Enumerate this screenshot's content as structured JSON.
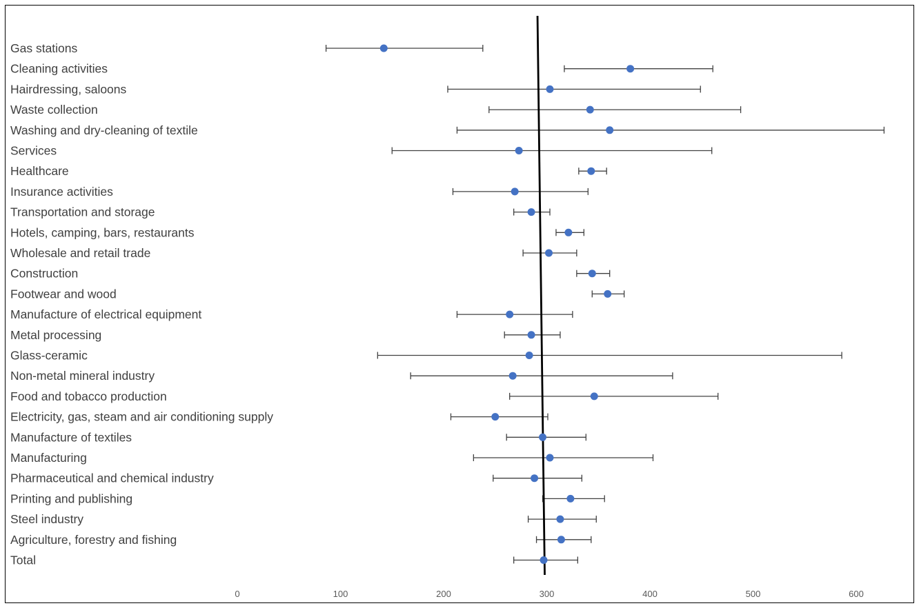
{
  "chart_data": {
    "type": "scatter",
    "title": "",
    "xlabel": "",
    "ylabel": "",
    "xlim": [
      0,
      600
    ],
    "x_ticks": [
      0,
      100,
      200,
      300,
      400,
      500,
      600
    ],
    "grid": false,
    "legend": "none",
    "marker_color": "#4472C4",
    "errorbar_color": "#404040",
    "reference_line": {
      "x_top": 291,
      "x_bottom": 298,
      "color": "#000000"
    },
    "categories": [
      "Gas stations",
      "Cleaning activities",
      "Hairdressing, saloons",
      "Waste collection",
      "Washing and dry-cleaning of textile",
      "Services",
      "Healthcare",
      "Insurance activities",
      "Transportation and storage",
      "Hotels, camping, bars, restaurants",
      "Wholesale and retail trade",
      "Construction",
      "Footwear and wood",
      "Manufacture of electrical equipment",
      "Metal processing",
      "Glass-ceramic",
      "Non-metal mineral industry",
      "Food and tobacco production",
      "Electricity, gas, steam and air conditioning supply",
      "Manufacture of textiles",
      "Manufacturing",
      "Pharmaceutical and chemical industry",
      "Printing and publishing",
      "Steel industry",
      "Agriculture, forestry and fishing",
      "Total"
    ],
    "values": [
      142,
      381,
      303,
      342,
      361,
      273,
      343,
      269,
      285,
      321,
      302,
      344,
      359,
      264,
      285,
      283,
      267,
      346,
      250,
      296,
      303,
      288,
      323,
      313,
      314,
      297
    ],
    "lower": [
      86,
      317,
      204,
      244,
      213,
      150,
      331,
      209,
      268,
      309,
      277,
      329,
      344,
      213,
      259,
      136,
      168,
      264,
      207,
      261,
      229,
      248,
      296,
      282,
      290,
      268
    ],
    "upper": [
      238,
      461,
      449,
      488,
      627,
      460,
      358,
      340,
      303,
      336,
      329,
      361,
      375,
      325,
      313,
      586,
      422,
      466,
      301,
      338,
      403,
      334,
      356,
      348,
      343,
      330
    ]
  }
}
